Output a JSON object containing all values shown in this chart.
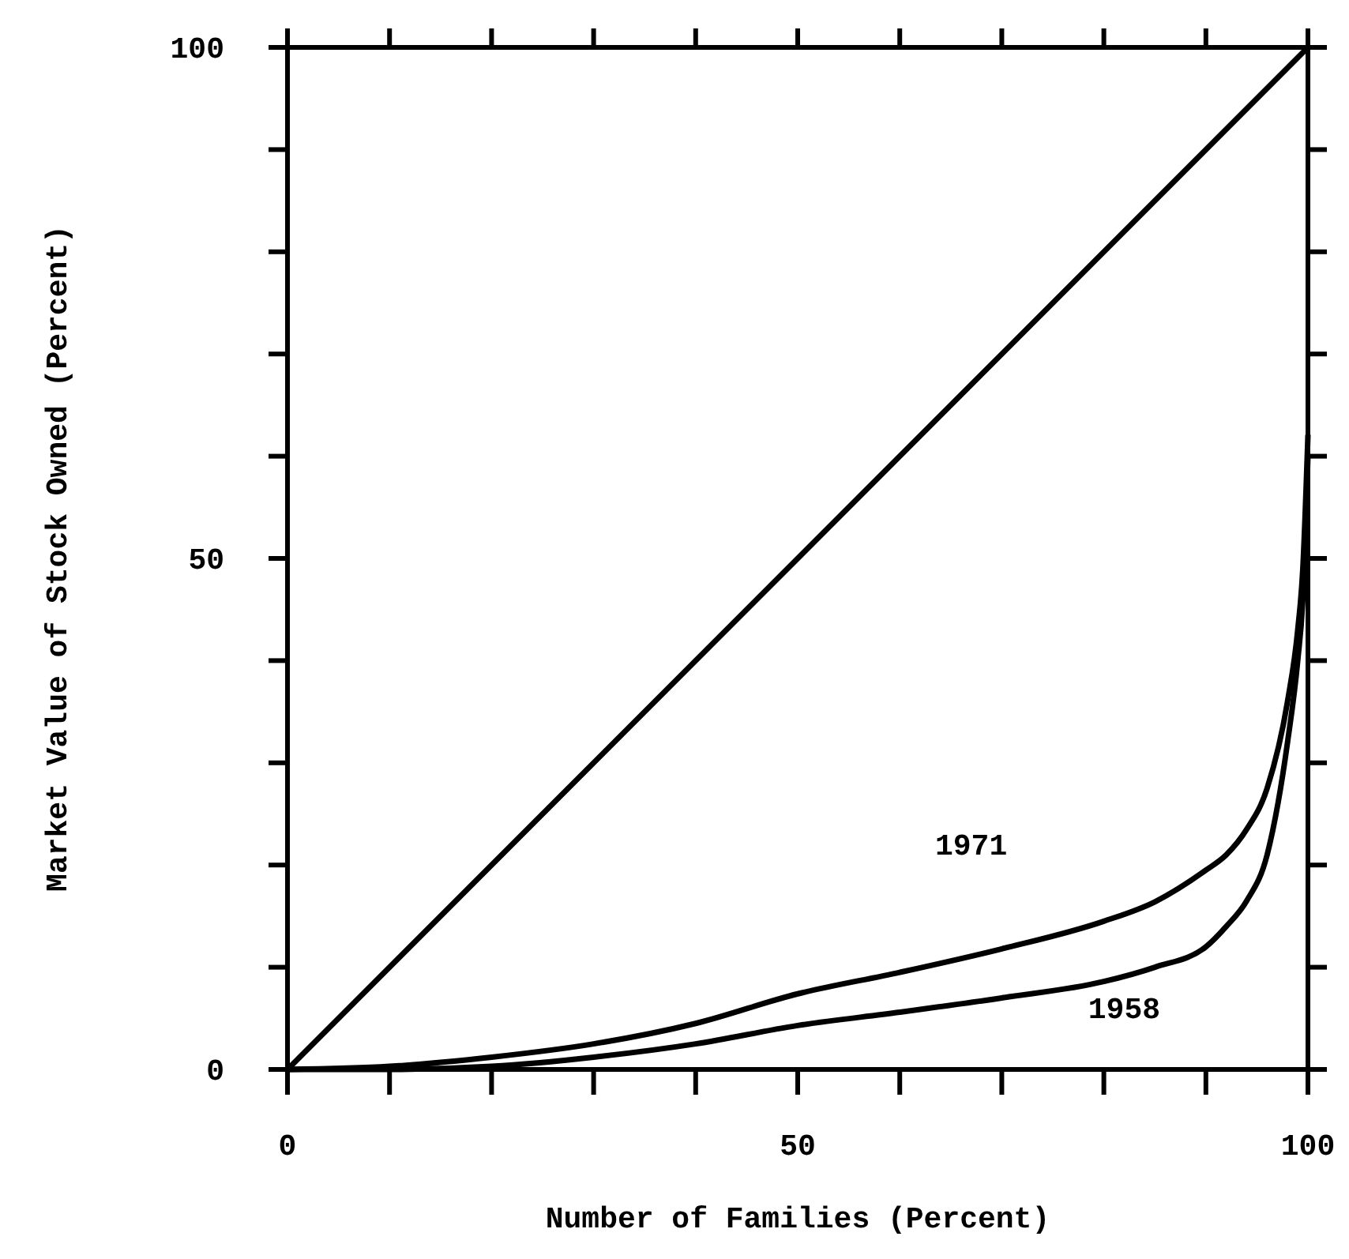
{
  "chart_data": {
    "type": "line",
    "xlabel": "Number of Families (Percent)",
    "ylabel": "Market Value of Stock Owned (Percent)",
    "xlim": [
      0,
      100
    ],
    "ylim": [
      0,
      100
    ],
    "xticks": [
      0,
      {
        "value": 10,
        "label": null
      },
      {
        "value": 20,
        "label": null
      },
      {
        "value": 30,
        "label": null
      },
      {
        "value": 40,
        "label": null
      },
      50,
      {
        "value": 60,
        "label": null
      },
      {
        "value": 70,
        "label": null
      },
      {
        "value": 80,
        "label": null
      },
      {
        "value": 90,
        "label": null
      },
      100
    ],
    "yticks": [
      0,
      {
        "value": 10,
        "label": null
      },
      {
        "value": 20,
        "label": null
      },
      {
        "value": 30,
        "label": null
      },
      {
        "value": 40,
        "label": null
      },
      50,
      {
        "value": 60,
        "label": null
      },
      {
        "value": 70,
        "label": null
      },
      {
        "value": 80,
        "label": null
      },
      {
        "value": 90,
        "label": null
      },
      100
    ],
    "series": [
      {
        "color": "#000000",
        "x": [
          0,
          100
        ],
        "values": [
          0,
          100
        ]
      },
      {
        "color": "#000000",
        "x": [
          0,
          10,
          20,
          30,
          40,
          50,
          60,
          70,
          80,
          85,
          90,
          92,
          94,
          96,
          98,
          99,
          99.5,
          100
        ],
        "values": [
          0,
          0.3,
          1.2,
          2.5,
          4.5,
          7.4,
          9.5,
          11.8,
          14.5,
          16.4,
          19.5,
          21,
          23.5,
          27.5,
          36,
          43,
          49,
          62
        ]
      },
      {
        "color": "#000000",
        "x": [
          0,
          10,
          20,
          30,
          40,
          50,
          60,
          70,
          80,
          85,
          90,
          92,
          94,
          96,
          98,
          99,
          99.5,
          100
        ],
        "values": [
          0,
          0,
          0.3,
          1.2,
          2.5,
          4.3,
          5.6,
          7,
          8.6,
          10,
          12,
          14,
          16.5,
          21,
          32,
          40,
          46,
          60
        ]
      }
    ],
    "annotations": [
      "1971",
      "1958"
    ],
    "grid": false,
    "marker": "none",
    "line_style": "solid"
  }
}
